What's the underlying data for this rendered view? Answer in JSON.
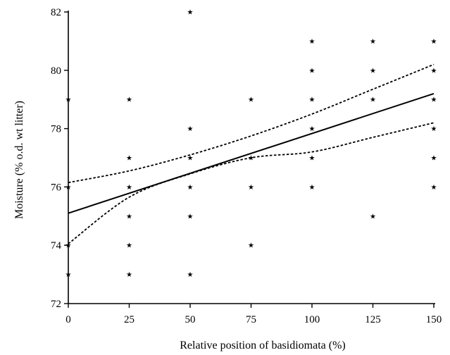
{
  "chart_data": {
    "type": "scatter",
    "xlabel": "Relative position of basidiomata (%)",
    "ylabel": "Moisture (% o.d. wt litter)",
    "xlim": [
      0,
      150
    ],
    "ylim": [
      72,
      82
    ],
    "x_ticks": [
      0,
      25,
      50,
      75,
      100,
      125,
      150
    ],
    "x_tick_labels": [
      "0",
      "25",
      "50",
      "75",
      "100",
      "125",
      "150"
    ],
    "y_ticks": [
      72,
      74,
      76,
      78,
      80,
      82
    ],
    "y_tick_labels": [
      "72",
      "74",
      "76",
      "78",
      "80",
      "82"
    ],
    "grid": false,
    "legend": "none",
    "marker": "★",
    "points": [
      {
        "x": 0,
        "y": 79
      },
      {
        "x": 0,
        "y": 76
      },
      {
        "x": 0,
        "y": 74
      },
      {
        "x": 0,
        "y": 73
      },
      {
        "x": 25,
        "y": 79
      },
      {
        "x": 25,
        "y": 77
      },
      {
        "x": 25,
        "y": 76
      },
      {
        "x": 25,
        "y": 75
      },
      {
        "x": 25,
        "y": 74
      },
      {
        "x": 25,
        "y": 73
      },
      {
        "x": 50,
        "y": 82
      },
      {
        "x": 50,
        "y": 78
      },
      {
        "x": 50,
        "y": 77
      },
      {
        "x": 50,
        "y": 76
      },
      {
        "x": 50,
        "y": 75
      },
      {
        "x": 50,
        "y": 73
      },
      {
        "x": 75,
        "y": 79
      },
      {
        "x": 75,
        "y": 77
      },
      {
        "x": 75,
        "y": 76
      },
      {
        "x": 75,
        "y": 74
      },
      {
        "x": 100,
        "y": 81
      },
      {
        "x": 100,
        "y": 80
      },
      {
        "x": 100,
        "y": 79
      },
      {
        "x": 100,
        "y": 78
      },
      {
        "x": 100,
        "y": 77
      },
      {
        "x": 100,
        "y": 76
      },
      {
        "x": 125,
        "y": 81
      },
      {
        "x": 125,
        "y": 80
      },
      {
        "x": 125,
        "y": 79
      },
      {
        "x": 125,
        "y": 75
      },
      {
        "x": 150,
        "y": 81
      },
      {
        "x": 150,
        "y": 80
      },
      {
        "x": 150,
        "y": 79
      },
      {
        "x": 150,
        "y": 78
      },
      {
        "x": 150,
        "y": 77
      },
      {
        "x": 150,
        "y": 76
      }
    ],
    "regression_line": {
      "x": [
        0,
        150
      ],
      "y": [
        75.1,
        79.2
      ]
    },
    "confidence_band": {
      "style": "dashed",
      "x": [
        0,
        25,
        50,
        75,
        100,
        125,
        150
      ],
      "upper": [
        76.15,
        76.55,
        77.1,
        77.75,
        78.5,
        79.35,
        80.2
      ],
      "lower": [
        74.05,
        75.65,
        76.45,
        77.0,
        77.2,
        77.7,
        78.2
      ]
    }
  }
}
